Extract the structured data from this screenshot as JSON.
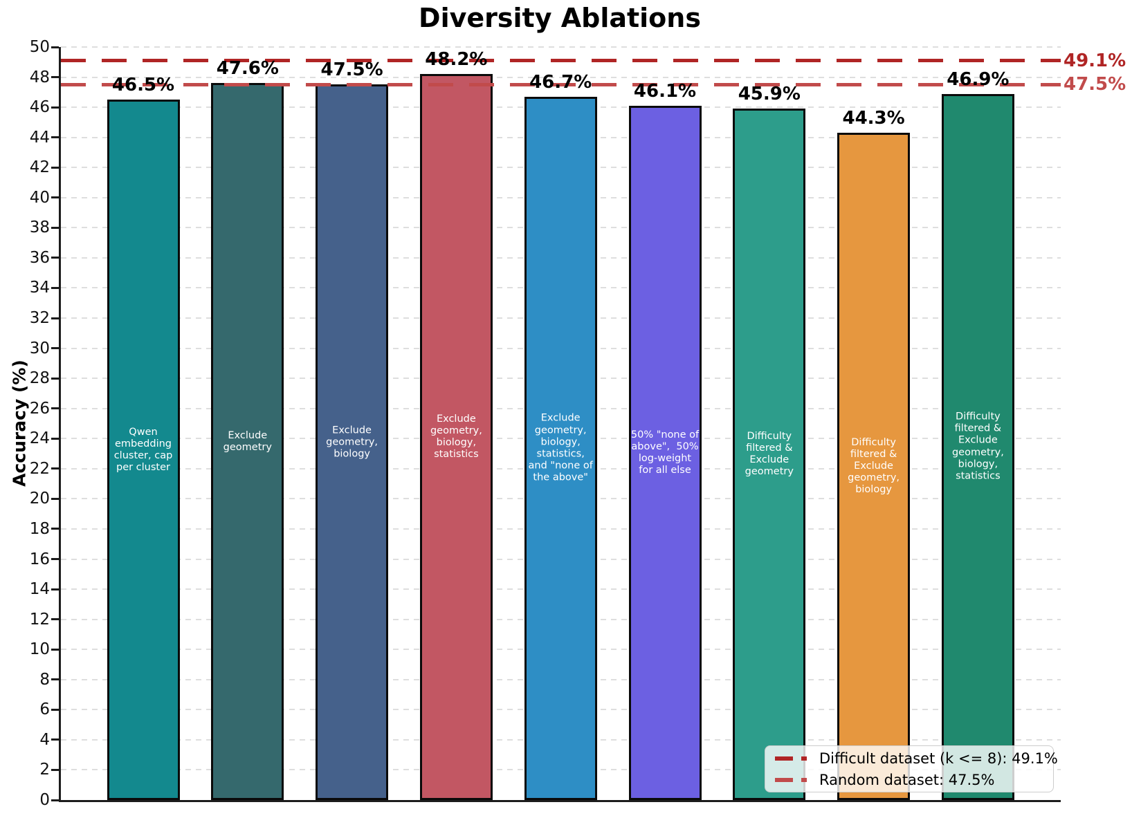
{
  "figure": {
    "title": "Diversity Ablations"
  },
  "chart_data": {
    "type": "bar",
    "title": "Diversity Ablations",
    "xlabel": "",
    "ylabel": "Accuracy (%)",
    "ylim": [
      0,
      50
    ],
    "yticks": [
      0,
      2,
      4,
      6,
      8,
      10,
      12,
      14,
      16,
      18,
      20,
      22,
      24,
      26,
      28,
      30,
      32,
      34,
      36,
      38,
      40,
      42,
      44,
      46,
      48,
      50
    ],
    "grid": true,
    "legend_position": "lower right",
    "categories": [
      "Qwen\nembedding\ncluster, cap\nper cluster",
      "Exclude\ngeometry",
      "Exclude\ngeometry,\nbiology",
      "Exclude\ngeometry,\nbiology,\nstatistics",
      "Exclude\ngeometry,\nbiology,\nstatistics,\nand \"none of\nthe above\"",
      "50% \"none of\nabove\",  50%\nlog-weight\nfor all else",
      "Difficulty\nfiltered &\nExclude\ngeometry",
      "Difficulty\nfiltered &\nExclude\ngeometry,\nbiology",
      "Difficulty\nfiltered &\nExclude\ngeometry,\nbiology,\nstatistics"
    ],
    "values": [
      46.5,
      47.6,
      47.5,
      48.2,
      46.7,
      46.1,
      45.9,
      44.3,
      46.9
    ],
    "value_labels": [
      "46.5%",
      "47.6%",
      "47.5%",
      "48.2%",
      "46.7%",
      "46.1%",
      "45.9%",
      "44.3%",
      "46.9%"
    ],
    "bar_colors": [
      "#13898E",
      "#35696D",
      "#45618B",
      "#C25763",
      "#2E8EC5",
      "#6C60E2",
      "#2D9D8B",
      "#E6973F",
      "#20896E"
    ],
    "reference_lines": [
      {
        "value": 49.1,
        "annotation": "49.1%",
        "color": "#B02525",
        "legend_label": "Difficult dataset (k <= 8): 49.1%"
      },
      {
        "value": 47.5,
        "annotation": "47.5%",
        "color": "#C14B4B",
        "legend_label": "Random dataset: 47.5%"
      }
    ]
  }
}
